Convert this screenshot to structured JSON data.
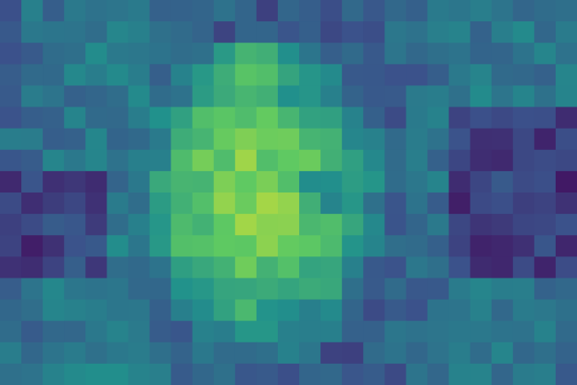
{
  "image": {
    "kind": "pixelated heatmap-style portrait",
    "palette": [
      "#440154",
      "#3b528b",
      "#21918c",
      "#5ec962",
      "#fde725"
    ],
    "grid": {
      "cols": 27,
      "rows": 18
    }
  }
}
